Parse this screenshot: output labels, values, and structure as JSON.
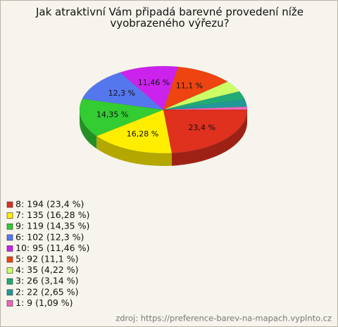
{
  "chart_data": {
    "type": "pie",
    "title": "Jak atraktivní Vám připadá barevné provedení níže vyobrazeného výřezu?",
    "categories": [
      "8",
      "7",
      "9",
      "6",
      "10",
      "5",
      "4",
      "3",
      "2",
      "1"
    ],
    "values": [
      23.4,
      16.28,
      14.35,
      12.3,
      11.46,
      11.1,
      4.22,
      3.14,
      2.65,
      1.09
    ],
    "value_labels": [
      "23,4 %",
      "16,28 %",
      "14,35 %",
      "12,3 %",
      "11,46 %",
      "11,1 %",
      null,
      null,
      null,
      null
    ],
    "legend": [
      "8: 194 (23,4 %)",
      "7: 135 (16,28 %)",
      "9: 119 (14,35 %)",
      "6: 102 (12,3 %)",
      "10: 95 (11,46 %)",
      "5: 92 (11,1 %)",
      "4: 35 (4,22 %)",
      "3: 26 (3,14 %)",
      "2: 22 (2,65 %)",
      "1: 9 (1,09 %)"
    ],
    "colors": [
      "#e0301e",
      "#ffee00",
      "#33cc33",
      "#5577ee",
      "#cc22ee",
      "#ee4411",
      "#ccff66",
      "#22aa77",
      "#229999",
      "#ee66bb"
    ],
    "source": "zdroj: https://preference-barev-na-mapach.vyplnto.cz"
  }
}
